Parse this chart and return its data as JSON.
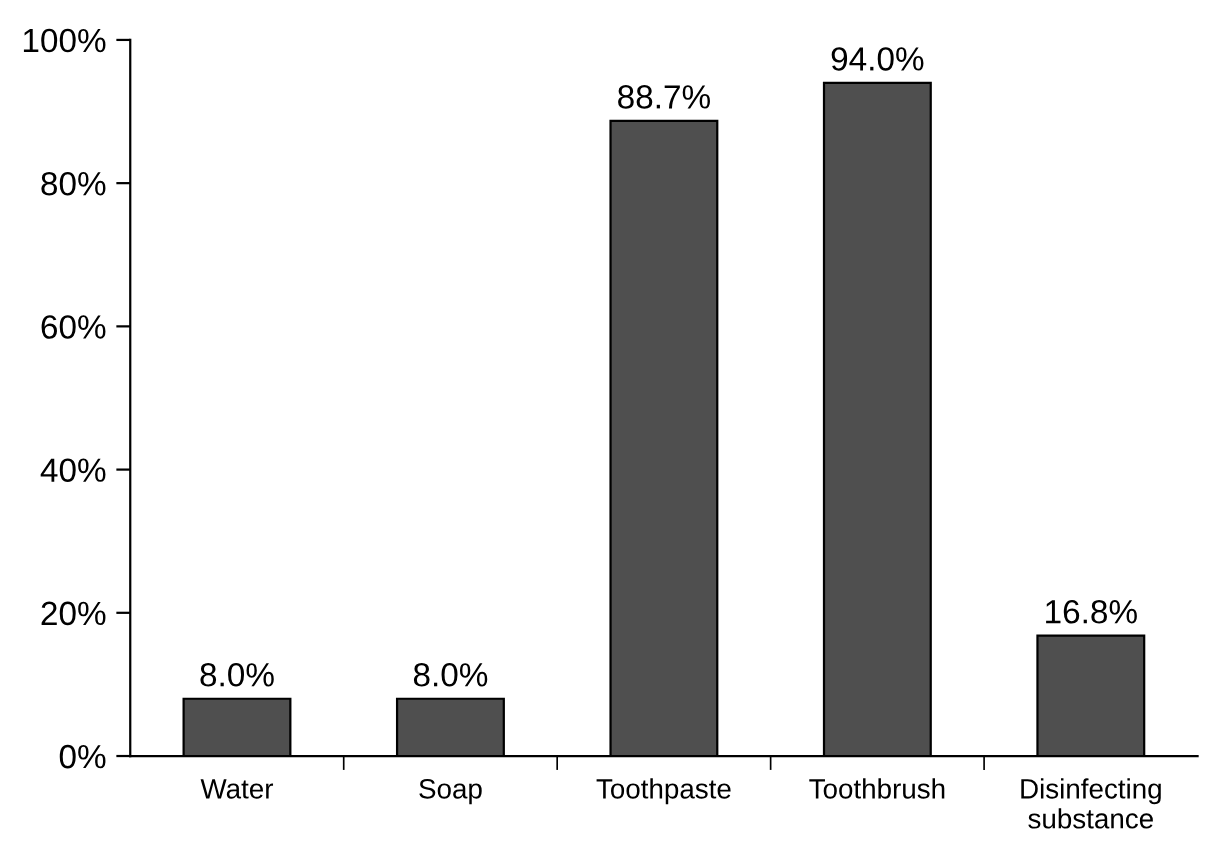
{
  "chart_data": {
    "type": "bar",
    "categories": [
      "Water",
      "Soap",
      "Toothpaste",
      "Toothbrush",
      "Disinfecting\nsubstance"
    ],
    "values": [
      8.0,
      8.0,
      88.7,
      94.0,
      16.8
    ],
    "value_labels": [
      "8.0%",
      "8.0%",
      "88.7%",
      "94.0%",
      "16.8%"
    ],
    "color": "#4f4f4f",
    "ylim": [
      0,
      100
    ],
    "yticks": [
      {
        "value": 0,
        "label": "0%"
      },
      {
        "value": 20,
        "label": "20%"
      },
      {
        "value": 40,
        "label": "40%"
      },
      {
        "value": 60,
        "label": "60%"
      },
      {
        "value": 80,
        "label": "80%"
      },
      {
        "value": 100,
        "label": "100%"
      }
    ],
    "grid": false
  }
}
